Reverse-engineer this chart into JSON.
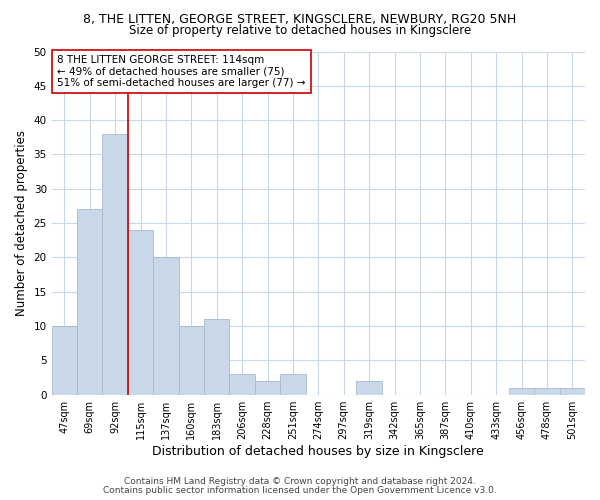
{
  "title": "8, THE LITTEN, GEORGE STREET, KINGSCLERE, NEWBURY, RG20 5NH",
  "subtitle": "Size of property relative to detached houses in Kingsclere",
  "xlabel": "Distribution of detached houses by size in Kingsclere",
  "ylabel": "Number of detached properties",
  "bin_labels": [
    "47sqm",
    "69sqm",
    "92sqm",
    "115sqm",
    "137sqm",
    "160sqm",
    "183sqm",
    "206sqm",
    "228sqm",
    "251sqm",
    "274sqm",
    "297sqm",
    "319sqm",
    "342sqm",
    "365sqm",
    "387sqm",
    "410sqm",
    "433sqm",
    "456sqm",
    "478sqm",
    "501sqm"
  ],
  "bar_values": [
    10,
    27,
    38,
    24,
    20,
    10,
    11,
    3,
    2,
    3,
    0,
    0,
    2,
    0,
    0,
    0,
    0,
    0,
    1,
    1,
    1
  ],
  "bar_color": "#c8d8e8",
  "bar_edge_color": "#a8b8cc",
  "vline_color": "#cc0000",
  "vline_x": 2.5,
  "ylim": [
    0,
    50
  ],
  "annotation_text": "8 THE LITTEN GEORGE STREET: 114sqm\n← 49% of detached houses are smaller (75)\n51% of semi-detached houses are larger (77) →",
  "annotation_box_color": "#ffffff",
  "annotation_box_edge": "#cc0000",
  "footer1": "Contains HM Land Registry data © Crown copyright and database right 2024.",
  "footer2": "Contains public sector information licensed under the Open Government Licence v3.0.",
  "background_color": "#ffffff",
  "grid_color": "#c8d8e8",
  "title_fontsize": 9,
  "subtitle_fontsize": 8.5,
  "ylabel_fontsize": 8.5,
  "xlabel_fontsize": 9,
  "tick_fontsize": 7,
  "footer_fontsize": 6.5,
  "annot_fontsize": 7.5
}
